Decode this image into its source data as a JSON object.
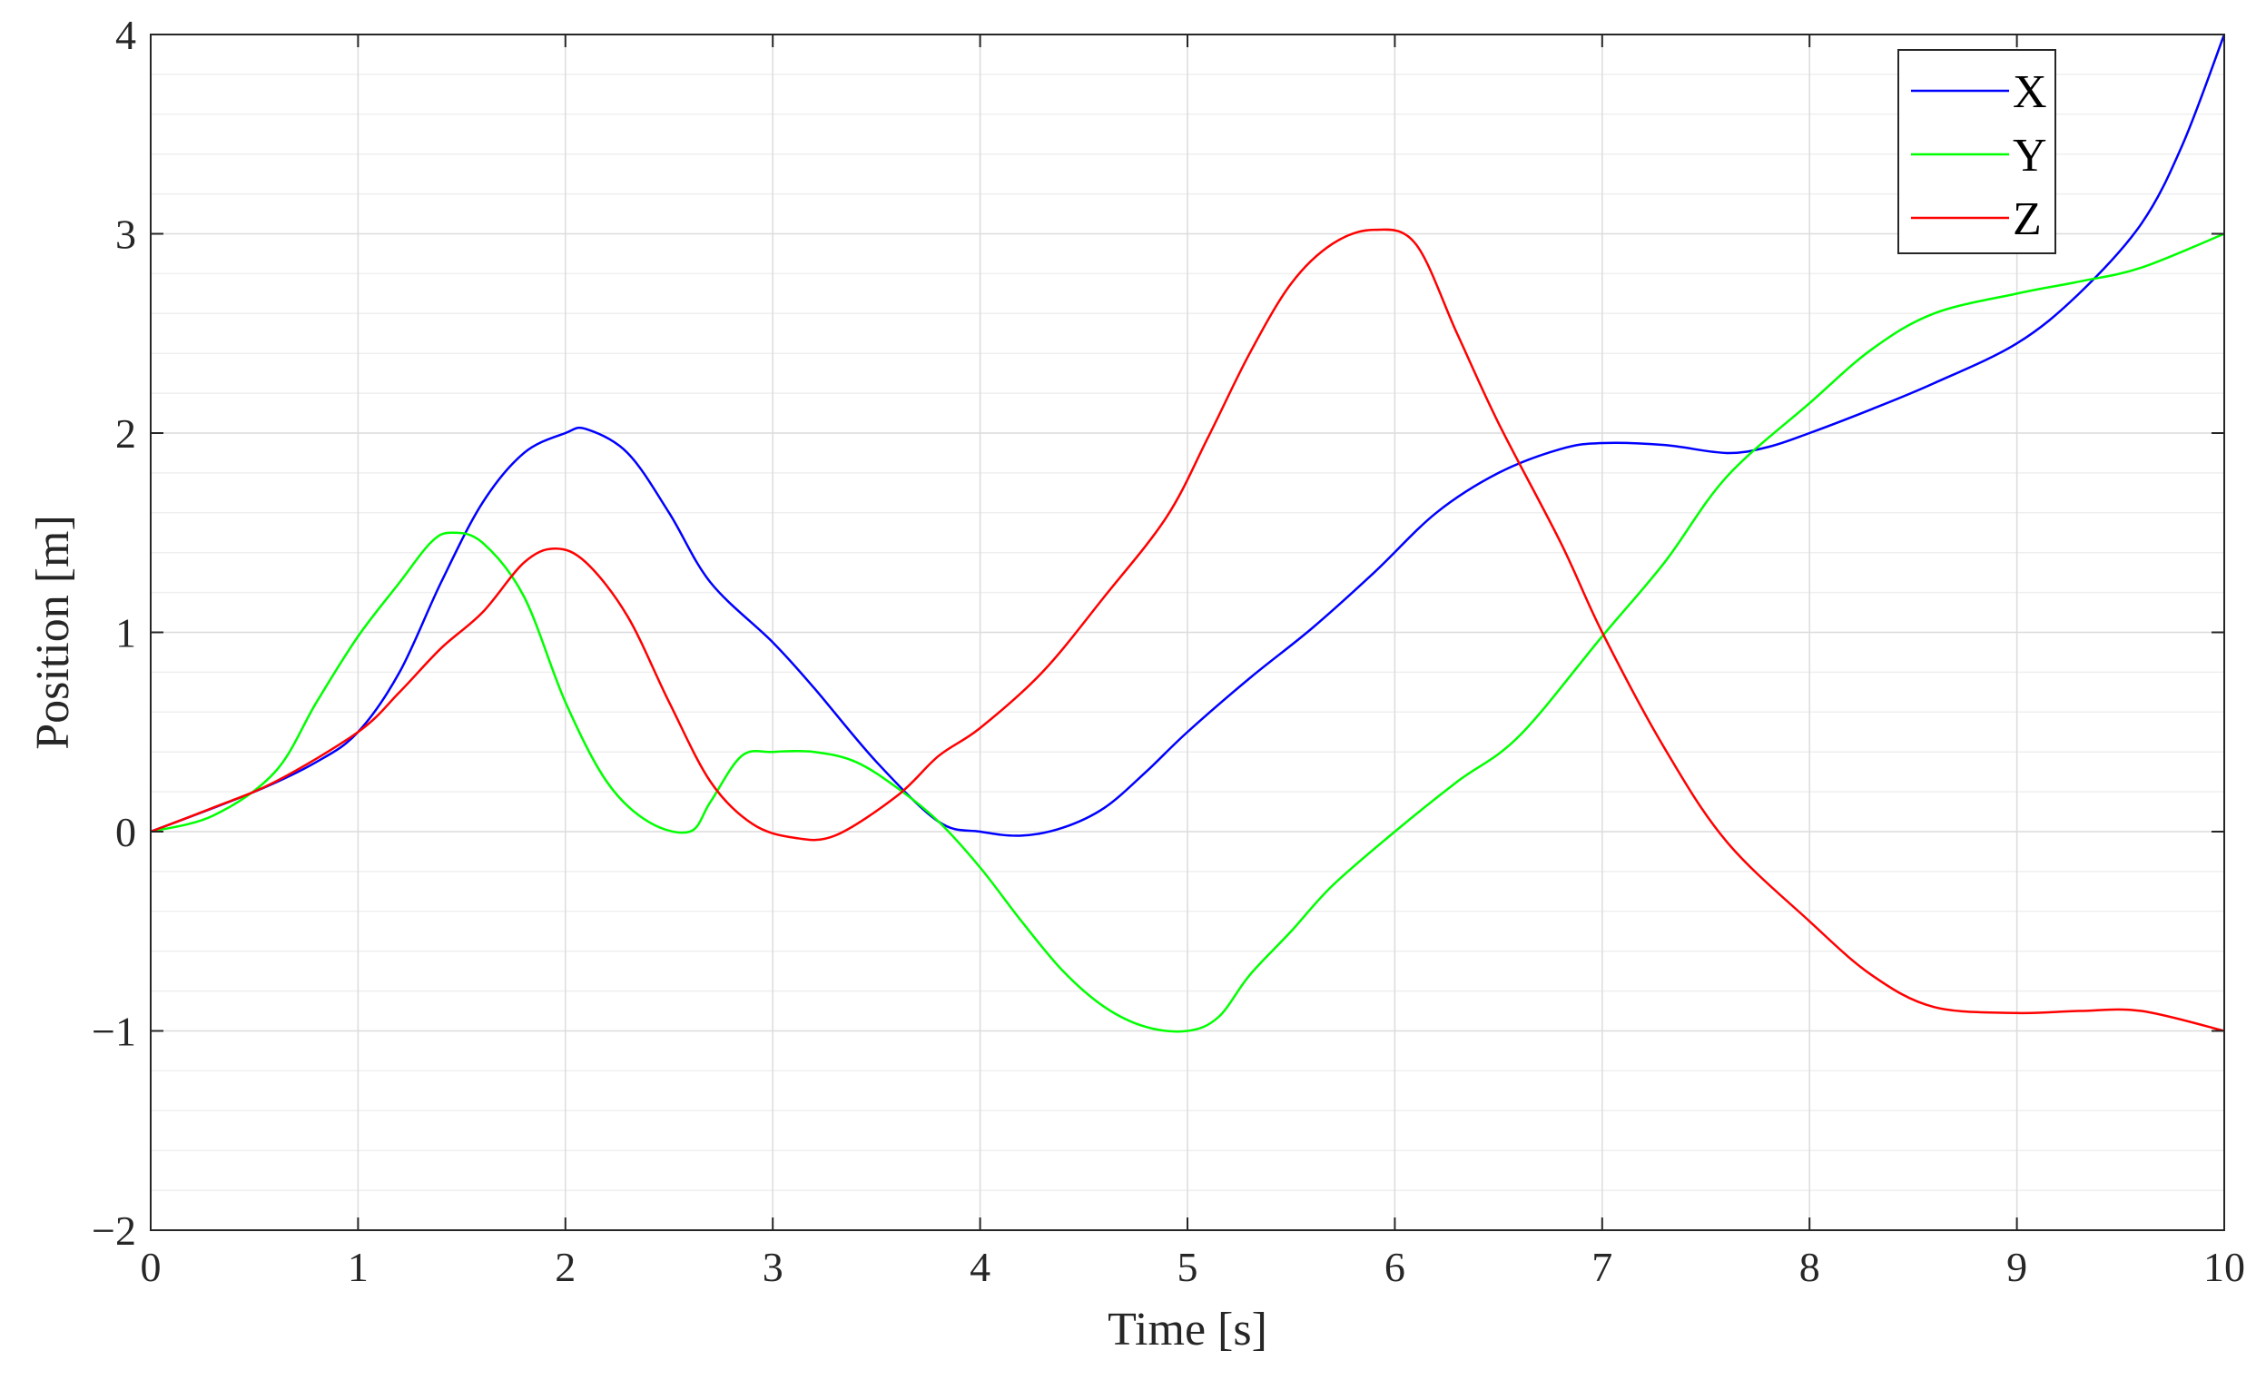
{
  "chart_data": {
    "type": "line",
    "title": "",
    "xlabel": "Time [s]",
    "ylabel": "Position [m]",
    "xlim": [
      0,
      10
    ],
    "ylim": [
      -2,
      4
    ],
    "x_ticks": [
      0,
      1,
      2,
      3,
      4,
      5,
      6,
      7,
      8,
      9,
      10
    ],
    "x_tick_labels": [
      "0",
      "1",
      "2",
      "3",
      "4",
      "5",
      "6",
      "7",
      "8",
      "9",
      "10"
    ],
    "y_ticks": [
      -2,
      -1,
      0,
      1,
      2,
      3,
      4
    ],
    "y_tick_labels": [
      "−2",
      "−1",
      "0",
      "1",
      "2",
      "3",
      "4"
    ],
    "grid": true,
    "minor_grid_y": true,
    "legend_position": "top-right",
    "colors": {
      "axes": "#262626",
      "grid_major": "#dcdcdc",
      "grid_minor": "#efefef"
    },
    "series": [
      {
        "name": "X",
        "color": "#0000ff",
        "points": [
          [
            0,
            0
          ],
          [
            0.5,
            0.2
          ],
          [
            0.8,
            0.35
          ],
          [
            1,
            0.5
          ],
          [
            1.2,
            0.8
          ],
          [
            1.4,
            1.25
          ],
          [
            1.6,
            1.65
          ],
          [
            1.8,
            1.9
          ],
          [
            2,
            2.0
          ],
          [
            2.1,
            2.02
          ],
          [
            2.3,
            1.9
          ],
          [
            2.5,
            1.6
          ],
          [
            2.7,
            1.25
          ],
          [
            3,
            0.95
          ],
          [
            3.2,
            0.72
          ],
          [
            3.5,
            0.35
          ],
          [
            3.8,
            0.05
          ],
          [
            4,
            0.0
          ],
          [
            4.2,
            -0.02
          ],
          [
            4.4,
            0.02
          ],
          [
            4.6,
            0.12
          ],
          [
            4.8,
            0.3
          ],
          [
            5,
            0.5
          ],
          [
            5.3,
            0.77
          ],
          [
            5.6,
            1.02
          ],
          [
            5.9,
            1.3
          ],
          [
            6.2,
            1.6
          ],
          [
            6.5,
            1.8
          ],
          [
            6.8,
            1.92
          ],
          [
            7,
            1.95
          ],
          [
            7.3,
            1.94
          ],
          [
            7.6,
            1.9
          ],
          [
            7.8,
            1.93
          ],
          [
            8,
            2.0
          ],
          [
            8.3,
            2.12
          ],
          [
            8.6,
            2.25
          ],
          [
            9,
            2.45
          ],
          [
            9.3,
            2.7
          ],
          [
            9.6,
            3.05
          ],
          [
            9.8,
            3.45
          ],
          [
            10,
            4.0
          ]
        ]
      },
      {
        "name": "Y",
        "color": "#00ff00",
        "points": [
          [
            0,
            0.0
          ],
          [
            0.3,
            0.08
          ],
          [
            0.6,
            0.3
          ],
          [
            0.8,
            0.65
          ],
          [
            1,
            0.98
          ],
          [
            1.2,
            1.25
          ],
          [
            1.35,
            1.45
          ],
          [
            1.45,
            1.5
          ],
          [
            1.6,
            1.45
          ],
          [
            1.8,
            1.18
          ],
          [
            2,
            0.65
          ],
          [
            2.2,
            0.25
          ],
          [
            2.4,
            0.05
          ],
          [
            2.6,
            0.0
          ],
          [
            2.7,
            0.15
          ],
          [
            2.85,
            0.38
          ],
          [
            3,
            0.4
          ],
          [
            3.2,
            0.4
          ],
          [
            3.4,
            0.35
          ],
          [
            3.6,
            0.22
          ],
          [
            3.8,
            0.05
          ],
          [
            4,
            -0.18
          ],
          [
            4.2,
            -0.45
          ],
          [
            4.4,
            -0.7
          ],
          [
            4.6,
            -0.88
          ],
          [
            4.8,
            -0.98
          ],
          [
            5,
            -1.0
          ],
          [
            5.15,
            -0.93
          ],
          [
            5.3,
            -0.72
          ],
          [
            5.5,
            -0.5
          ],
          [
            5.7,
            -0.27
          ],
          [
            6,
            0.0
          ],
          [
            6.3,
            0.25
          ],
          [
            6.6,
            0.48
          ],
          [
            7,
            0.98
          ],
          [
            7.3,
            1.35
          ],
          [
            7.6,
            1.78
          ],
          [
            8,
            2.15
          ],
          [
            8.3,
            2.42
          ],
          [
            8.6,
            2.6
          ],
          [
            9,
            2.7
          ],
          [
            9.3,
            2.76
          ],
          [
            9.6,
            2.83
          ],
          [
            10,
            3.0
          ]
        ]
      },
      {
        "name": "Z",
        "color": "#ff0000",
        "points": [
          [
            0,
            0
          ],
          [
            0.3,
            0.12
          ],
          [
            0.6,
            0.25
          ],
          [
            1,
            0.5
          ],
          [
            1.2,
            0.7
          ],
          [
            1.4,
            0.92
          ],
          [
            1.6,
            1.1
          ],
          [
            1.8,
            1.35
          ],
          [
            1.95,
            1.42
          ],
          [
            2.1,
            1.35
          ],
          [
            2.3,
            1.08
          ],
          [
            2.5,
            0.65
          ],
          [
            2.7,
            0.25
          ],
          [
            2.9,
            0.04
          ],
          [
            3.1,
            -0.03
          ],
          [
            3.3,
            -0.02
          ],
          [
            3.6,
            0.18
          ],
          [
            3.8,
            0.38
          ],
          [
            4,
            0.52
          ],
          [
            4.3,
            0.8
          ],
          [
            4.6,
            1.18
          ],
          [
            4.9,
            1.58
          ],
          [
            5.1,
            1.98
          ],
          [
            5.3,
            2.4
          ],
          [
            5.5,
            2.75
          ],
          [
            5.7,
            2.95
          ],
          [
            5.9,
            3.02
          ],
          [
            6.1,
            2.95
          ],
          [
            6.3,
            2.5
          ],
          [
            6.5,
            2.05
          ],
          [
            6.8,
            1.45
          ],
          [
            7,
            1.0
          ],
          [
            7.3,
            0.42
          ],
          [
            7.6,
            -0.05
          ],
          [
            8,
            -0.45
          ],
          [
            8.3,
            -0.72
          ],
          [
            8.6,
            -0.88
          ],
          [
            9,
            -0.91
          ],
          [
            9.3,
            -0.9
          ],
          [
            9.6,
            -0.9
          ],
          [
            10,
            -1.0
          ]
        ]
      }
    ]
  }
}
